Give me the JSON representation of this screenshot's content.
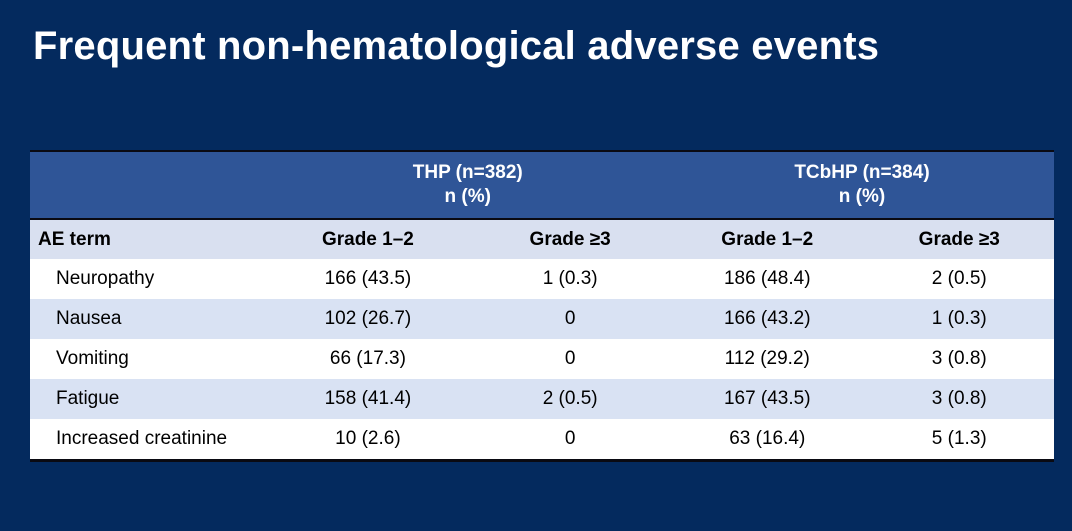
{
  "colors": {
    "slide_background": "#042a5e",
    "header_band": "#2f5597",
    "column_header_row": "#d9e0f0",
    "stripe_row": "#d9e2f3",
    "white_row": "#ffffff",
    "table_border": "#0a0a12",
    "header_text": "#ffffff",
    "body_text": "#000000",
    "title_text": "#ffffff"
  },
  "slide": {
    "title": "Frequent non-hematological adverse events"
  },
  "table": {
    "group_headers": [
      {
        "line1": "THP (n=382)",
        "line2": "n (%)"
      },
      {
        "line1": "TCbHP (n=384)",
        "line2": "n (%)"
      }
    ],
    "column_headers": [
      "AE term",
      "Grade 1–2",
      "Grade ≥3",
      "Grade 1–2",
      "Grade ≥3"
    ],
    "rows": [
      {
        "term": "Neuropathy",
        "values": [
          "166 (43.5)",
          "1 (0.3)",
          "186 (48.4)",
          "2 (0.5)"
        ]
      },
      {
        "term": "Nausea",
        "values": [
          "102 (26.7)",
          "0",
          "166 (43.2)",
          "1 (0.3)"
        ]
      },
      {
        "term": "Vomiting",
        "values": [
          "66 (17.3)",
          "0",
          "112 (29.2)",
          "3 (0.8)"
        ]
      },
      {
        "term": "Fatigue",
        "values": [
          "158 (41.4)",
          "2 (0.5)",
          "167 (43.5)",
          "3 (0.8)"
        ]
      },
      {
        "term": "Increased creatinine",
        "values": [
          "10 (2.6)",
          "0",
          "63 (16.4)",
          "5 (1.3)"
        ]
      }
    ]
  }
}
